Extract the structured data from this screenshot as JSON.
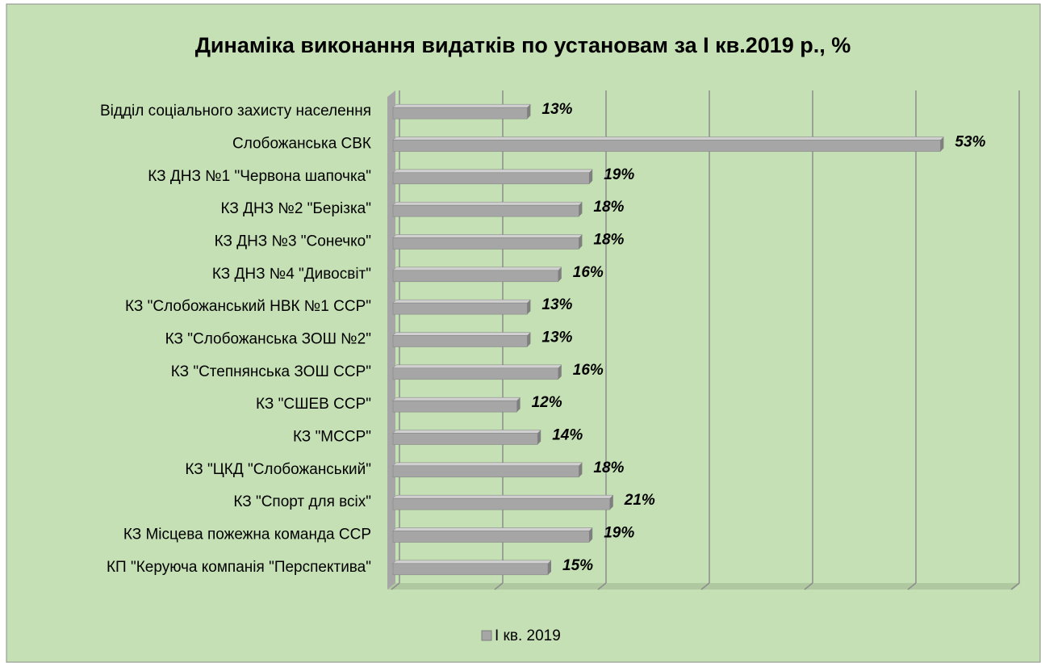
{
  "chart_data": {
    "type": "bar",
    "orientation": "horizontal",
    "title": "Динаміка виконання видатків по установам за І кв.2019 р., %",
    "categories": [
      "Відділ соціального захисту населення",
      "Слобожанська СВК",
      "КЗ ДНЗ №1 \"Червона шапочка\"",
      "КЗ ДНЗ №2 \"Берізка\"",
      "КЗ ДНЗ №3 \"Сонечко\"",
      "КЗ ДНЗ №4 \"Дивосвіт\"",
      "КЗ \"Слобожанський НВК №1 ССР\"",
      "КЗ \"Слобожанська ЗОШ №2\"",
      "КЗ \"Степнянська ЗОШ ССР\"",
      "КЗ \"СШЕВ ССР\"",
      "КЗ \"МССР\"",
      "КЗ \"ЦКД \"Слобожанський\"",
      "КЗ \"Спорт для всіх\"",
      "КЗ Місцева пожежна команда ССР",
      "КП \"Керуюча компанія \"Перспектива\""
    ],
    "series": [
      {
        "name": "І кв. 2019",
        "color": "#a6a6a6",
        "values": [
          13,
          53,
          19,
          18,
          18,
          16,
          13,
          13,
          16,
          12,
          14,
          18,
          21,
          19,
          15
        ],
        "value_labels": [
          "13%",
          "53%",
          "19%",
          "18%",
          "18%",
          "16%",
          "13%",
          "13%",
          "16%",
          "12%",
          "14%",
          "18%",
          "21%",
          "19%",
          "15%"
        ]
      }
    ],
    "xlim": [
      0,
      60
    ],
    "xticks": [
      0,
      10,
      20,
      30,
      40,
      50,
      60
    ],
    "grid": true,
    "legend": "bottom"
  }
}
